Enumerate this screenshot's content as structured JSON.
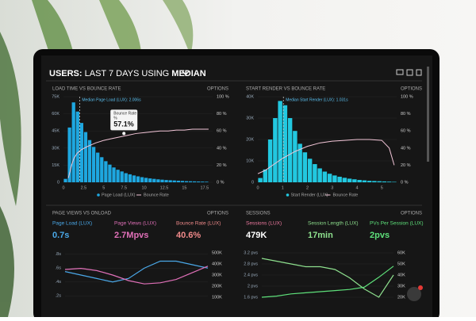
{
  "header": {
    "title": [
      "USERS:",
      "LAST 7 DAYS",
      "USING",
      "MEDIAN"
    ]
  },
  "panels": [
    {
      "title": "LOAD TIME VS BOUNCE RATE",
      "options": "OPTIONS",
      "chart": {
        "type": "histogram",
        "bar_name": "Page Load (LUX)",
        "bar_color": "#1ea7e0",
        "bins": [
          0,
          0.5,
          1,
          1.5,
          2,
          2.5,
          3,
          3.5,
          4,
          4.5,
          5,
          5.5,
          6,
          6.5,
          7,
          7.5,
          8,
          8.5,
          9,
          9.5,
          10,
          10.5,
          11,
          11.5,
          12,
          12.5,
          13,
          13.5,
          14,
          14.5,
          15,
          15.5,
          16,
          16.5,
          17,
          17.5,
          18
        ],
        "counts": [
          3000,
          48000,
          70000,
          62000,
          52000,
          44000,
          37000,
          31000,
          26000,
          22000,
          18500,
          15500,
          13000,
          11000,
          9500,
          8000,
          7000,
          6000,
          5200,
          4500,
          3900,
          3400,
          3000,
          2600,
          2300,
          2000,
          1800,
          1600,
          1400,
          1200,
          1000,
          900,
          800,
          700,
          600,
          500
        ],
        "xlim": [
          0,
          18.5
        ],
        "xticks": [
          0,
          2.5,
          5,
          7.5,
          10,
          12.5,
          15,
          17.5
        ],
        "ylim": [
          0,
          75000
        ],
        "yticks": [
          0,
          {
            "value": 15000,
            "label": "15K"
          },
          {
            "value": 30000,
            "label": "30K"
          },
          {
            "value": 45000,
            "label": "45K"
          },
          {
            "value": 60000,
            "label": "60K"
          },
          {
            "value": 75000,
            "label": "75K"
          }
        ],
        "y2lim": [
          0,
          100
        ],
        "y2ticks": [
          {
            "value": 0,
            "label": "0 %"
          },
          {
            "value": 20,
            "label": "20 %"
          },
          {
            "value": 40,
            "label": "40 %"
          },
          {
            "value": 60,
            "label": "60 %"
          },
          {
            "value": 80,
            "label": "80 %"
          },
          {
            "value": 100,
            "label": "100 %"
          }
        ],
        "line": {
          "name": "Bounce Rate",
          "color": "#f3c6d8",
          "x": [
            0.6,
            0.8,
            1,
            1.3,
            1.7,
            2.2,
            3,
            4,
            5,
            6,
            7,
            8,
            9,
            10,
            11,
            12,
            13,
            14,
            15,
            16,
            17,
            18
          ],
          "values": [
            5,
            12,
            20,
            28,
            34,
            38,
            42,
            46,
            49,
            51,
            53,
            55,
            57,
            58,
            59,
            60,
            60,
            61,
            61,
            62,
            62,
            62
          ]
        },
        "median": {
          "label": "Median Page Load (LUX): 2.006s",
          "value": 2.006
        },
        "tooltip": {
          "title": "Bounce Rate",
          "unit": "%",
          "value": "57.1%",
          "x": 7.5,
          "y": 57.1
        }
      }
    },
    {
      "title": "START RENDER VS BOUNCE RATE",
      "options": "OPTIONS",
      "chart": {
        "type": "histogram",
        "bar_name": "Start Render (LUX)",
        "bar_color": "#22c8e0",
        "bins": [
          0,
          0.2,
          0.4,
          0.6,
          0.8,
          1,
          1.2,
          1.4,
          1.6,
          1.8,
          2,
          2.2,
          2.4,
          2.6,
          2.8,
          3,
          3.2,
          3.4,
          3.6,
          3.8,
          4,
          4.2,
          4.4,
          4.6,
          4.8,
          5,
          5.2,
          5.4,
          5.6
        ],
        "counts": [
          2000,
          6000,
          20000,
          30000,
          38000,
          36000,
          30000,
          24000,
          18000,
          14000,
          11000,
          8500,
          6500,
          5000,
          4000,
          3200,
          2600,
          2100,
          1700,
          1400,
          1100,
          900,
          700,
          600,
          500,
          400,
          300,
          200
        ],
        "xlim": [
          0,
          5.6
        ],
        "xticks": [
          0,
          1,
          2,
          3,
          4,
          5
        ],
        "ylim": [
          0,
          40000
        ],
        "yticks": [
          0,
          {
            "value": 10000,
            "label": "10K"
          },
          {
            "value": 20000,
            "label": "20K"
          },
          {
            "value": 30000,
            "label": "30K"
          },
          {
            "value": 40000,
            "label": "40K"
          }
        ],
        "y2lim": [
          0,
          100
        ],
        "y2ticks": [
          {
            "value": 0,
            "label": "0 %"
          },
          {
            "value": 20,
            "label": "20 %"
          },
          {
            "value": 40,
            "label": "40 %"
          },
          {
            "value": 60,
            "label": "60 %"
          },
          {
            "value": 80,
            "label": "80 %"
          },
          {
            "value": 100,
            "label": "100 %"
          }
        ],
        "line": {
          "name": "Bounce Rate",
          "color": "#f3c6d8",
          "x": [
            0,
            0.3,
            0.6,
            1,
            1.5,
            2,
            2.5,
            3,
            3.5,
            4,
            4.5,
            5,
            5.3,
            5.5
          ],
          "values": [
            10,
            14,
            20,
            28,
            36,
            42,
            46,
            48,
            49,
            50,
            50,
            49,
            40,
            20
          ]
        },
        "median": {
          "label": "Median Start Render (LUX): 1.031s",
          "value": 1.031
        }
      }
    },
    {
      "title": "PAGE VIEWS VS ONLOAD",
      "options": "OPTIONS",
      "metrics": [
        {
          "label": "Page Load (LUX)",
          "value": "0.7s",
          "color": "#4aa8e8"
        },
        {
          "label": "Page Views (LUX)",
          "value": "2.7Mpvs",
          "color": "#e070b8"
        },
        {
          "label": "Bounce Rate (LUX)",
          "value": "40.6%",
          "color": "#f08a8a"
        }
      ],
      "chart": {
        "type": "line",
        "ylim": [
          0.1,
          0.9
        ],
        "yticks": [
          {
            "value": 0.2,
            "label": ".2s"
          },
          {
            "value": 0.4,
            "label": ".4s"
          },
          {
            "value": 0.6,
            "label": ".6s"
          },
          {
            "value": 0.8,
            "label": ".8s"
          }
        ],
        "y2lim": [
          50000,
          550000
        ],
        "y2ticks": [
          {
            "value": 100000,
            "label": "100K"
          },
          {
            "value": 200000,
            "label": "200K"
          },
          {
            "value": 300000,
            "label": "300K"
          },
          {
            "value": 400000,
            "label": "400K"
          },
          {
            "value": 500000,
            "label": "500K"
          }
        ],
        "series": [
          {
            "color": "#4aa8e8",
            "axis": "y",
            "values": [
              0.55,
              0.5,
              0.45,
              0.4,
              0.45,
              0.6,
              0.7,
              0.7,
              0.65,
              0.6
            ]
          },
          {
            "color": "#e070b8",
            "axis": "y2",
            "values": [
              350000,
              360000,
              340000,
              300000,
              250000,
              220000,
              230000,
              260000,
              320000,
              380000
            ]
          }
        ]
      }
    },
    {
      "title": "SESSIONS",
      "options": "OPTIONS",
      "metrics": [
        {
          "label": "Sessions (LUX)",
          "value": "479K",
          "color": "#f07aa0"
        },
        {
          "label": "Session Length (LUX)",
          "value": "17min",
          "color": "#8ee08e"
        },
        {
          "label": "PVs Per Session (LUX)",
          "value": "2pvs",
          "color": "#5ee07a"
        }
      ],
      "chart": {
        "type": "line",
        "ylim": [
          1.4,
          3.4
        ],
        "yticks": [
          {
            "value": 1.6,
            "label": "1.6 pvs"
          },
          {
            "value": 2,
            "label": "2 pvs"
          },
          {
            "value": 2.4,
            "label": "2.4 pvs"
          },
          {
            "value": 2.8,
            "label": "2.8 pvs"
          },
          {
            "value": 3.2,
            "label": "3.2 pvs"
          }
        ],
        "y2lim": [
          15000,
          65000
        ],
        "y2ticks": [
          {
            "value": 20000,
            "label": "20K"
          },
          {
            "value": 30000,
            "label": "30K"
          },
          {
            "value": 40000,
            "label": "40K"
          },
          {
            "value": 50000,
            "label": "50K"
          },
          {
            "value": 60000,
            "label": "60K"
          }
        ],
        "series": [
          {
            "color": "#8ee08e",
            "axis": "y",
            "values": [
              3.0,
              2.9,
              2.8,
              2.7,
              2.7,
              2.6,
              2.3,
              1.9,
              1.6,
              2.4
            ]
          },
          {
            "color": "#5ee07a",
            "axis": "y2",
            "values": [
              20000,
              21000,
              23000,
              24000,
              25000,
              26000,
              27000,
              29000,
              38000,
              48000
            ]
          }
        ]
      }
    }
  ]
}
